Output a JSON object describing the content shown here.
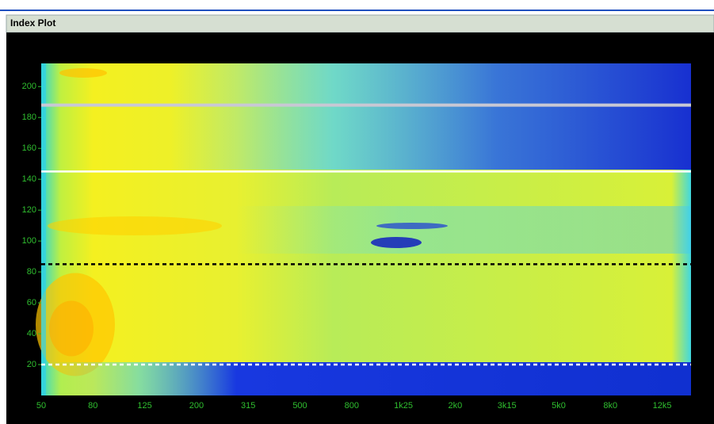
{
  "window_title": "Index Plot",
  "chart_data": {
    "type": "heatmap",
    "categories": [
      "50",
      "80",
      "125",
      "200",
      "315",
      "500",
      "800",
      "1k25",
      "2k0",
      "3k15",
      "5k0",
      "8k0",
      "12k5"
    ],
    "ylim": [
      0,
      215
    ],
    "yticks": [
      20,
      40,
      60,
      80,
      100,
      120,
      140,
      160,
      180,
      200
    ],
    "reference_lines": [
      {
        "value": 188,
        "color": "#c8c8d4",
        "style": "solid"
      },
      {
        "value": 145,
        "color": "#ffffff",
        "style": "solid"
      },
      {
        "value": 85,
        "color": "#000000",
        "style": "dashed"
      },
      {
        "value": 20,
        "color": "#ffffff",
        "style": "dashed"
      }
    ]
  }
}
